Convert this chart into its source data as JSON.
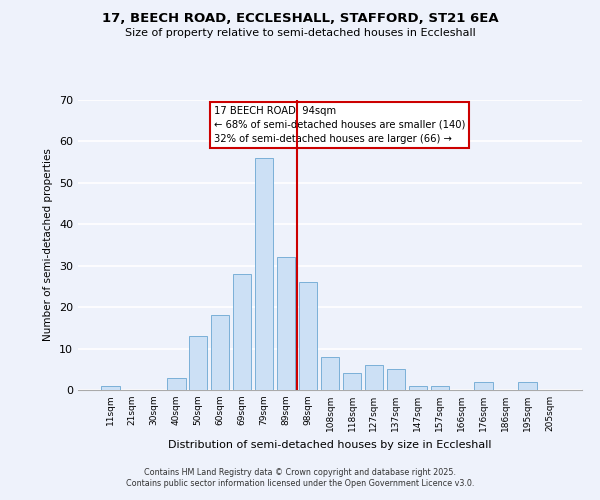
{
  "title": "17, BEECH ROAD, ECCLESHALL, STAFFORD, ST21 6EA",
  "subtitle": "Size of property relative to semi-detached houses in Eccleshall",
  "xlabel": "Distribution of semi-detached houses by size in Eccleshall",
  "ylabel": "Number of semi-detached properties",
  "bar_labels": [
    "11sqm",
    "21sqm",
    "30sqm",
    "40sqm",
    "50sqm",
    "60sqm",
    "69sqm",
    "79sqm",
    "89sqm",
    "98sqm",
    "108sqm",
    "118sqm",
    "127sqm",
    "137sqm",
    "147sqm",
    "157sqm",
    "166sqm",
    "176sqm",
    "186sqm",
    "195sqm",
    "205sqm"
  ],
  "bar_values": [
    1,
    0,
    0,
    3,
    13,
    18,
    28,
    56,
    32,
    26,
    8,
    4,
    6,
    5,
    1,
    1,
    0,
    2,
    0,
    2,
    0
  ],
  "bar_color": "#cce0f5",
  "bar_edge_color": "#7ab0d8",
  "background_color": "#eef2fb",
  "plot_bg_color": "#eef2fb",
  "vline_x_index": 8.5,
  "vline_color": "#cc0000",
  "ylim": [
    0,
    70
  ],
  "yticks": [
    0,
    10,
    20,
    30,
    40,
    50,
    60,
    70
  ],
  "annotation_line1": "17 BEECH ROAD: 94sqm",
  "annotation_line2": "← 68% of semi-detached houses are smaller (140)",
  "annotation_line3": "32% of semi-detached houses are larger (66) →",
  "footer_line1": "Contains HM Land Registry data © Crown copyright and database right 2025.",
  "footer_line2": "Contains public sector information licensed under the Open Government Licence v3.0."
}
